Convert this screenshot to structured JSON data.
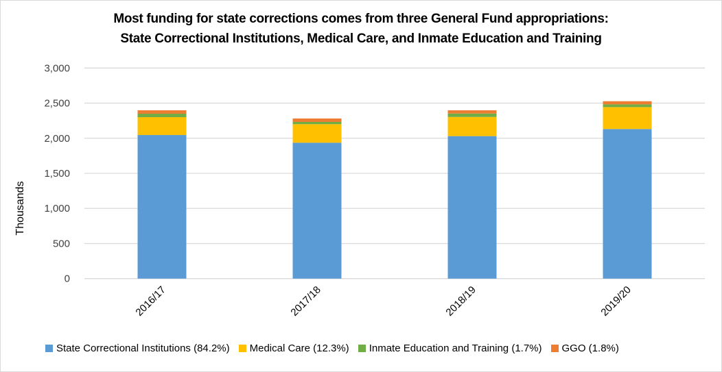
{
  "chart_data": {
    "type": "bar",
    "stacked": true,
    "title": "Most funding for state corrections comes from three General Fund appropriations:",
    "subtitle": "State Correctional Institutions, Medical Care, and Inmate Education and Training",
    "xlabel": "",
    "ylabel": "Thousands",
    "ylim": [
      0,
      3000
    ],
    "yticks": [
      0,
      500,
      1000,
      1500,
      2000,
      2500,
      3000
    ],
    "ytick_labels": [
      "0",
      "500",
      "1,000",
      "1,500",
      "2,000",
      "2,500",
      "3,000"
    ],
    "grid": true,
    "legend_position": "bottom",
    "categories": [
      "2016/17",
      "2017/18",
      "2018/19",
      "2019/20"
    ],
    "series": [
      {
        "name": "State Correctional Institutions (84.2%)",
        "color": "#5b9bd5",
        "values": [
          2046,
          1936,
          2030,
          2131
        ]
      },
      {
        "name": "Medical Care (12.3%)",
        "color": "#ffc000",
        "values": [
          254,
          264,
          273,
          312
        ]
      },
      {
        "name": "Inmate Education and Training (1.7%)",
        "color": "#70ad47",
        "values": [
          49,
          32,
          49,
          39
        ]
      },
      {
        "name": "GGO (1.8%)",
        "color": "#ed7d31",
        "values": [
          49,
          49,
          46,
          45
        ]
      }
    ]
  }
}
